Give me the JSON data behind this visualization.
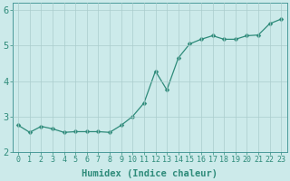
{
  "x": [
    0,
    1,
    2,
    3,
    4,
    5,
    6,
    7,
    8,
    9,
    10,
    11,
    12,
    13,
    14,
    15,
    16,
    17,
    18,
    19,
    20,
    21,
    22,
    23
  ],
  "y": [
    2.75,
    2.55,
    2.72,
    2.65,
    2.55,
    2.57,
    2.57,
    2.57,
    2.55,
    2.75,
    3.0,
    3.38,
    4.28,
    3.75,
    4.65,
    5.05,
    5.18,
    5.28,
    5.18,
    5.18,
    5.28,
    5.3,
    5.62,
    5.75
  ],
  "line_color": "#2e8b7a",
  "marker": "D",
  "markersize": 2.5,
  "linewidth": 0.9,
  "bg_color": "#cceaea",
  "grid_color": "#aacccc",
  "xlabel": "Humidex (Indice chaleur)",
  "ylim": [
    2.0,
    6.2
  ],
  "xlim": [
    -0.5,
    23.5
  ],
  "yticks": [
    2,
    3,
    4,
    5,
    6
  ],
  "xticks": [
    0,
    1,
    2,
    3,
    4,
    5,
    6,
    7,
    8,
    9,
    10,
    11,
    12,
    13,
    14,
    15,
    16,
    17,
    18,
    19,
    20,
    21,
    22,
    23
  ],
  "xtick_labels": [
    "0",
    "1",
    "2",
    "3",
    "4",
    "5",
    "6",
    "7",
    "8",
    "9",
    "10",
    "11",
    "12",
    "13",
    "14",
    "15",
    "16",
    "17",
    "18",
    "19",
    "20",
    "21",
    "22",
    "23"
  ],
  "tick_color": "#2e8b7a",
  "label_fontsize": 7.5,
  "tick_fontsize": 6,
  "spine_color": "#4a9a9a"
}
